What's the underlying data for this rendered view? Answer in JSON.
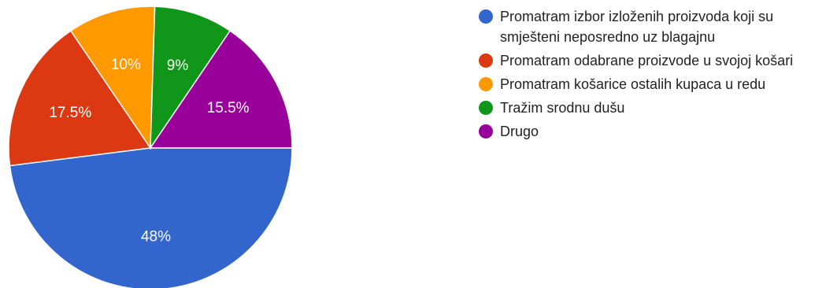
{
  "chart_data": {
    "type": "pie",
    "categories": [
      "Promatram izbor izloženih proizvoda koji su smješteni neposredno uz blagajnu",
      "Promatram odabrane proizvode u svojoj košari",
      "Promatram košarice ostalih kupaca u redu",
      "Tražim srodnu dušu",
      "Drugo"
    ],
    "values": [
      48,
      17.5,
      10,
      9,
      15.5
    ],
    "labels": [
      "48%",
      "17.5%",
      "10%",
      "9%",
      "15.5%"
    ],
    "colors": [
      "#3366cc",
      "#dc3912",
      "#ff9900",
      "#109618",
      "#990099"
    ],
    "legend_position": "right"
  }
}
